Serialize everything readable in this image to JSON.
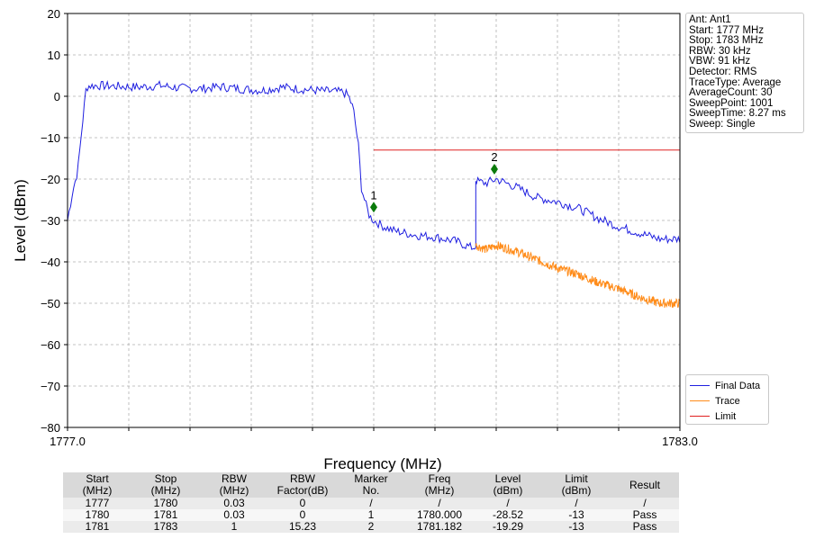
{
  "chart_data": {
    "type": "line",
    "xlabel": "Frequency (MHz)",
    "ylabel": "Level (dBm)",
    "xlim": [
      1777.0,
      1783.0
    ],
    "ylim": [
      -80,
      20
    ],
    "x_tick_labels": [
      "1777.0",
      "1783.0"
    ],
    "y_ticks": [
      20,
      10,
      0,
      -10,
      -20,
      -30,
      -40,
      -50,
      -60,
      -70,
      -80
    ],
    "grid": true,
    "legend_position": "lower-right-outside",
    "series": [
      {
        "name": "Final Data",
        "color": "#1f1fe0",
        "x": [
          1777.0,
          1777.05,
          1777.1,
          1777.14,
          1777.18,
          1777.2,
          1777.3,
          1777.5,
          1777.7,
          1777.9,
          1778.1,
          1778.3,
          1778.5,
          1778.7,
          1778.9,
          1779.1,
          1779.3,
          1779.5,
          1779.7,
          1779.75,
          1779.8,
          1779.85,
          1779.88,
          1779.92,
          1779.96,
          1780.0,
          1780.1,
          1780.2,
          1780.4,
          1780.6,
          1780.8,
          1780.95,
          1781.0,
          1781.0,
          1781.1,
          1781.2,
          1781.4,
          1781.6,
          1781.8,
          1782.0,
          1782.2,
          1782.4,
          1782.6,
          1782.8,
          1783.0
        ],
        "y": [
          -30,
          -23,
          -18,
          -8,
          1.5,
          2.5,
          2.6,
          2.4,
          2.2,
          2.6,
          2.0,
          1.8,
          2.3,
          1.8,
          1.4,
          2.2,
          1.7,
          1.3,
          1.0,
          0.2,
          -3,
          -12,
          -22,
          -26,
          -29,
          -30,
          -31.5,
          -32.5,
          -33.5,
          -34,
          -35,
          -36.5,
          -36.5,
          -20.5,
          -21,
          -20,
          -22,
          -24.5,
          -25.5,
          -27,
          -29.5,
          -31.5,
          -33,
          -34.5,
          -34.5
        ]
      },
      {
        "name": "Trace",
        "color": "#ff8c1a",
        "x": [
          1781.0,
          1781.1,
          1781.2,
          1781.4,
          1781.6,
          1781.8,
          1782.0,
          1782.2,
          1782.4,
          1782.6,
          1782.8,
          1783.0
        ],
        "y": [
          -36,
          -37,
          -36,
          -37.5,
          -39.5,
          -41.5,
          -43,
          -45,
          -46.5,
          -48.5,
          -50,
          -50
        ]
      },
      {
        "name": "Limit",
        "color": "#e02020",
        "x": [
          1780.0,
          1783.0
        ],
        "y": [
          -13,
          -13
        ]
      }
    ],
    "markers": [
      {
        "label": "1",
        "x": 1780.0,
        "y": -26.8
      },
      {
        "label": "2",
        "x": 1781.182,
        "y": -17.6
      }
    ]
  },
  "info_box": [
    "Ant: Ant1",
    "Start: 1777 MHz",
    "Stop: 1783 MHz",
    "RBW: 30 kHz",
    "VBW: 91 kHz",
    "Detector: RMS",
    "TraceType: Average",
    "AverageCount: 30",
    "SweepPoint: 1001",
    "SweepTime: 8.27 ms",
    "Sweep: Single"
  ],
  "table": {
    "headers": [
      [
        "Start",
        "(MHz)"
      ],
      [
        "Stop",
        "(MHz)"
      ],
      [
        "RBW",
        "(MHz)"
      ],
      [
        "RBW",
        "Factor(dB)"
      ],
      [
        "Marker",
        "No."
      ],
      [
        "Freq",
        "(MHz)"
      ],
      [
        "Level",
        "(dBm)"
      ],
      [
        "Limit",
        "(dBm)"
      ],
      [
        "Result",
        ""
      ]
    ],
    "rows": [
      [
        "1777",
        "1780",
        "0.03",
        "0",
        "/",
        "/",
        "/",
        "/",
        "/"
      ],
      [
        "1780",
        "1781",
        "0.03",
        "0",
        "1",
        "1780.000",
        "-28.52",
        "-13",
        "Pass"
      ],
      [
        "1781",
        "1783",
        "1",
        "15.23",
        "2",
        "1781.182",
        "-19.29",
        "-13",
        "Pass"
      ]
    ]
  }
}
